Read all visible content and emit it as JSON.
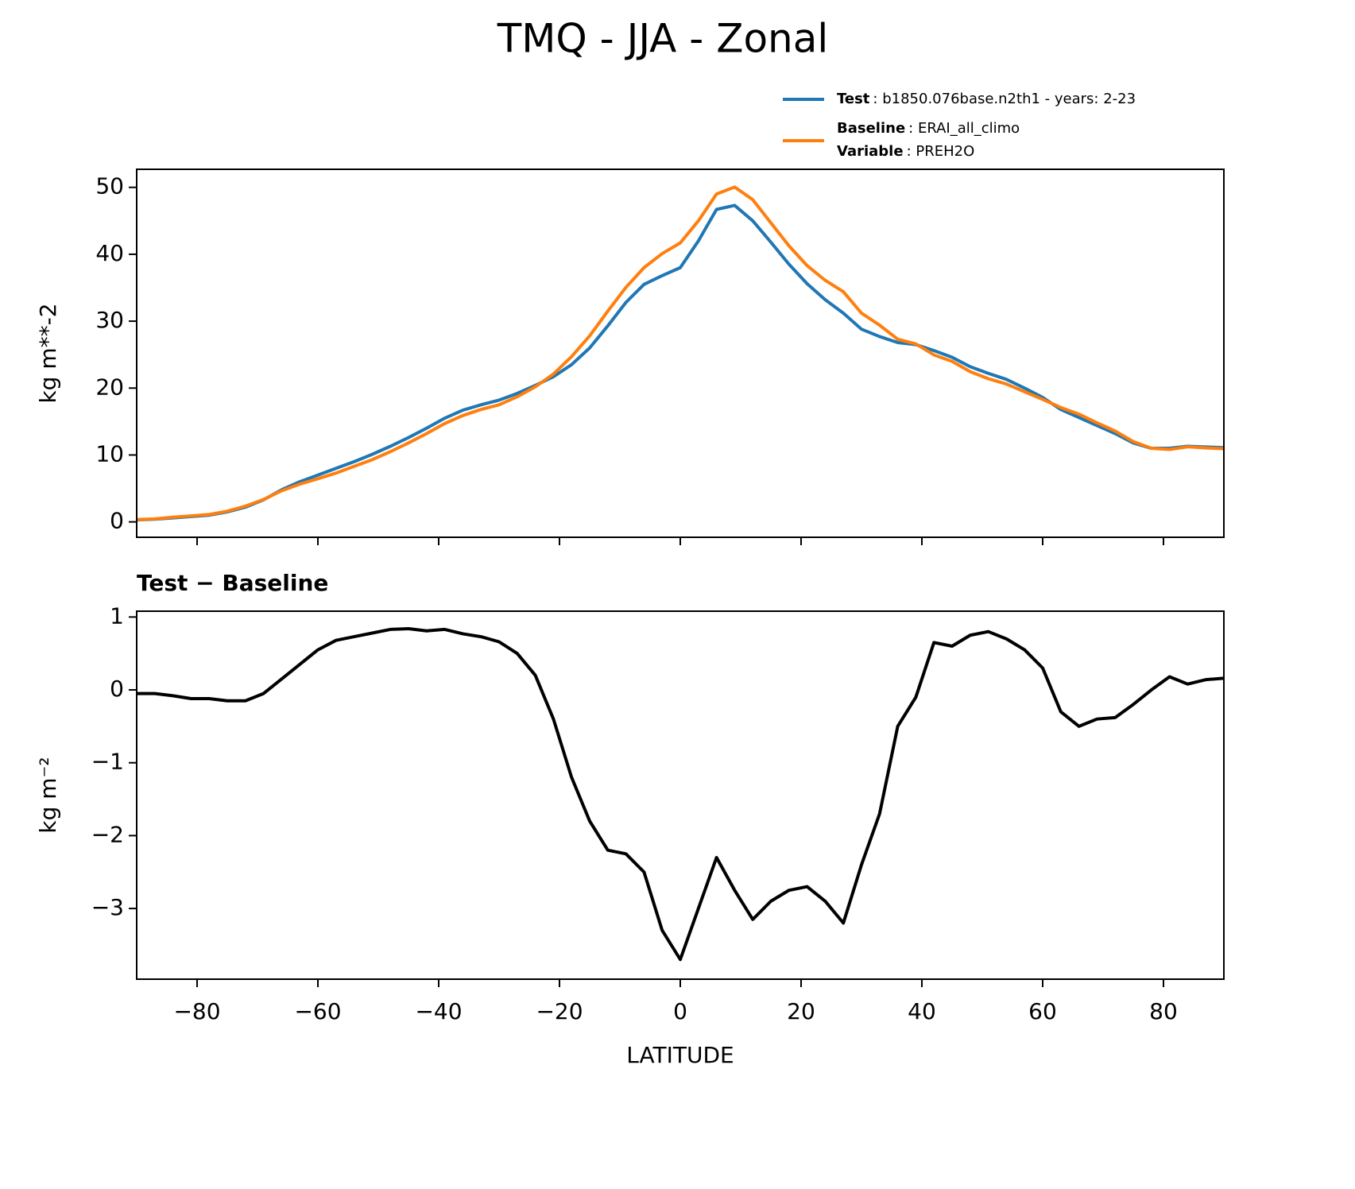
{
  "title": "TMQ - JJA - Zonal",
  "chart_data": [
    {
      "type": "line",
      "ylabel": "kg m**-2",
      "x": [
        -90,
        -87,
        -84,
        -81,
        -78,
        -75,
        -72,
        -69,
        -66,
        -63,
        -60,
        -57,
        -54,
        -51,
        -48,
        -45,
        -42,
        -39,
        -36,
        -33,
        -30,
        -27,
        -24,
        -21,
        -18,
        -15,
        -12,
        -9,
        -6,
        -3,
        0,
        3,
        6,
        9,
        12,
        15,
        18,
        21,
        24,
        27,
        30,
        33,
        36,
        39,
        42,
        45,
        48,
        51,
        54,
        57,
        60,
        63,
        66,
        69,
        72,
        75,
        78,
        81,
        84,
        87,
        90
      ],
      "series": [
        {
          "name": "Test",
          "description": ": b1850.076base.n2th1 - years: 2-23",
          "color": "#1f77b4",
          "values": [
            0.3,
            0.4,
            0.6,
            0.8,
            1.0,
            1.5,
            2.2,
            3.3,
            4.8,
            6.0,
            7.0,
            8.0,
            9.0,
            10.1,
            11.3,
            12.6,
            14.0,
            15.5,
            16.7,
            17.5,
            18.2,
            19.2,
            20.4,
            21.7,
            23.5,
            26.0,
            29.3,
            32.8,
            35.5,
            36.8,
            38.0,
            42.0,
            46.7,
            47.3,
            45.0,
            41.8,
            38.5,
            35.6,
            33.2,
            31.2,
            28.8,
            27.7,
            26.8,
            26.5,
            25.6,
            24.6,
            23.2,
            22.2,
            21.3,
            20.0,
            18.6,
            16.8,
            15.6,
            14.4,
            13.2,
            11.8,
            11.0,
            11.0,
            11.3,
            11.2,
            11.1
          ]
        },
        {
          "name": "Baseline",
          "description": ": ERAI_all_climo",
          "variable_label": "Variable",
          "variable": ": PREH2O",
          "color": "#ff7f0e",
          "values": [
            0.35,
            0.45,
            0.7,
            0.9,
            1.1,
            1.6,
            2.35,
            3.35,
            4.65,
            5.65,
            6.45,
            7.3,
            8.3,
            9.3,
            10.5,
            11.8,
            13.2,
            14.7,
            15.9,
            16.8,
            17.5,
            18.7,
            20.2,
            22.1,
            24.7,
            27.8,
            31.5,
            35.05,
            38.0,
            40.1,
            41.7,
            45.0,
            49.0,
            50.05,
            48.15,
            44.7,
            41.25,
            38.3,
            36.1,
            34.4,
            31.2,
            29.4,
            27.3,
            26.6,
            24.95,
            24.0,
            22.45,
            21.4,
            20.6,
            19.45,
            18.3,
            17.1,
            16.1,
            14.8,
            13.58,
            12.0,
            11.0,
            10.82,
            11.22,
            11.06,
            10.94
          ]
        }
      ],
      "xlim": [
        -90,
        90
      ],
      "xticks": [
        -80,
        -60,
        -40,
        -20,
        0,
        20,
        40,
        60,
        80
      ],
      "xtick_labels": false,
      "ylim": [
        -2.3,
        52.7
      ],
      "yticks": [
        0,
        10,
        20,
        30,
        40,
        50
      ],
      "legend": "upper right"
    },
    {
      "type": "line",
      "title": "Test − Baseline",
      "xlabel": "LATITUDE",
      "ylabel": "kg m⁻²",
      "x": [
        -90,
        -87,
        -84,
        -81,
        -78,
        -75,
        -72,
        -69,
        -66,
        -63,
        -60,
        -57,
        -54,
        -51,
        -48,
        -45,
        -42,
        -39,
        -36,
        -33,
        -30,
        -27,
        -24,
        -21,
        -18,
        -15,
        -12,
        -9,
        -6,
        -3,
        0,
        3,
        6,
        9,
        12,
        15,
        18,
        21,
        24,
        27,
        30,
        33,
        36,
        39,
        42,
        45,
        48,
        51,
        54,
        57,
        60,
        63,
        66,
        69,
        72,
        75,
        78,
        81,
        84,
        87,
        90
      ],
      "series": [
        {
          "color": "#000000",
          "values": [
            -0.05,
            -0.05,
            -0.08,
            -0.12,
            -0.12,
            -0.15,
            -0.15,
            -0.05,
            0.15,
            0.35,
            0.55,
            0.68,
            0.73,
            0.78,
            0.83,
            0.84,
            0.81,
            0.83,
            0.77,
            0.73,
            0.66,
            0.5,
            0.2,
            -0.4,
            -1.2,
            -1.8,
            -2.2,
            -2.25,
            -2.5,
            -3.3,
            -3.7,
            -3.0,
            -2.3,
            -2.75,
            -3.15,
            -2.9,
            -2.75,
            -2.7,
            -2.9,
            -3.2,
            -2.4,
            -1.7,
            -0.5,
            -0.1,
            0.65,
            0.6,
            0.75,
            0.8,
            0.7,
            0.55,
            0.3,
            -0.3,
            -0.5,
            -0.4,
            -0.38,
            -0.2,
            0.0,
            0.18,
            0.08,
            0.14,
            0.16
          ]
        }
      ],
      "xlim": [
        -90,
        90
      ],
      "xticks": [
        {
          "value": -80,
          "label": "−80"
        },
        {
          "value": -60,
          "label": "−60"
        },
        {
          "value": -40,
          "label": "−40"
        },
        {
          "value": -20,
          "label": "−20"
        },
        0,
        20,
        40,
        60,
        80
      ],
      "xtick_labels": true,
      "ylim": [
        -3.97,
        1.08
      ],
      "yticks": [
        {
          "value": -3,
          "label": "−3"
        },
        {
          "value": -2,
          "label": "−2"
        },
        {
          "value": -1,
          "label": "−1"
        },
        0,
        1
      ]
    }
  ]
}
